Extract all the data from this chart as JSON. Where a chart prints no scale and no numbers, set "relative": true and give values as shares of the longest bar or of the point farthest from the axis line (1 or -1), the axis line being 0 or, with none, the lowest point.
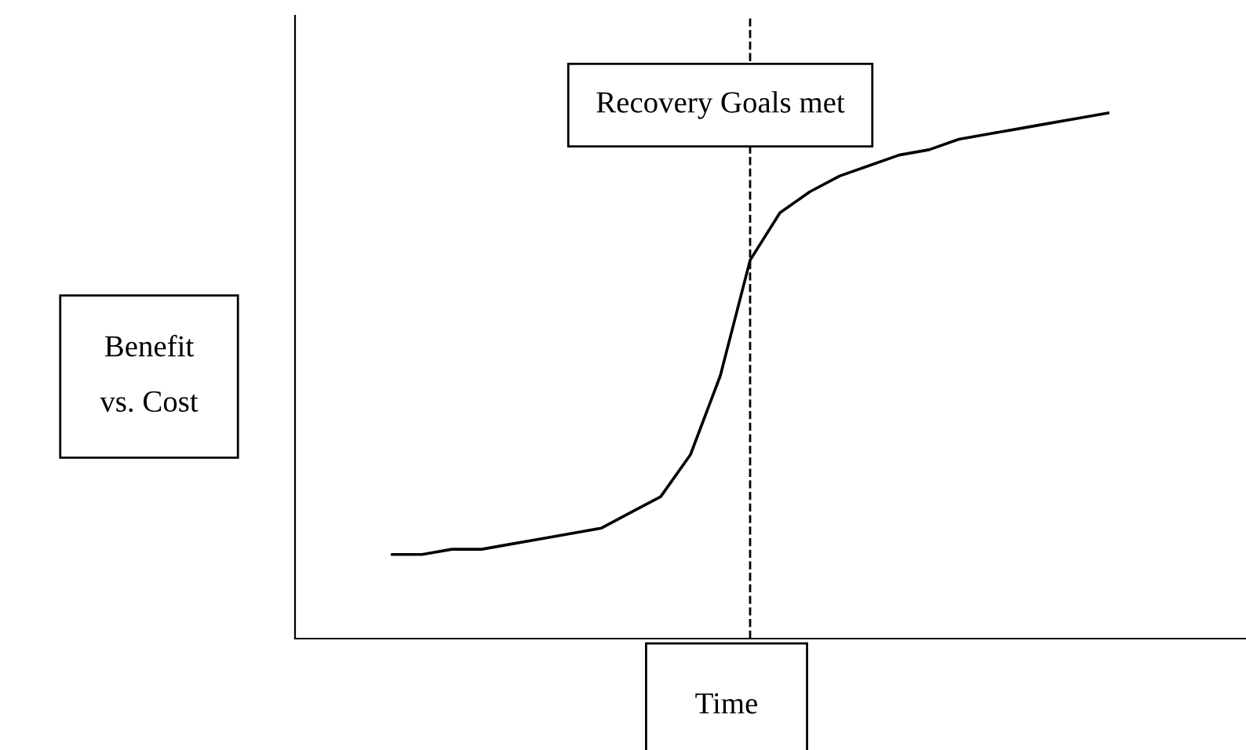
{
  "chart_data": {
    "type": "line",
    "relative": true,
    "xlabel": "Time",
    "annotations": [
      "Recovery Goals met",
      "Benefit\nvs. Cost"
    ],
    "categories": [
      null,
      null,
      null,
      null,
      null,
      null,
      null,
      null,
      null,
      null,
      null,
      null,
      null,
      null,
      null,
      null,
      null,
      null,
      null,
      null,
      null,
      null,
      null,
      null,
      null
    ],
    "series": [
      {
        "color": "#000000",
        "values": [
          0.16,
          0.16,
          0.17,
          0.17,
          0.18,
          0.19,
          0.2,
          0.21,
          0.24,
          0.27,
          0.35,
          0.5,
          0.72,
          0.81,
          0.85,
          0.88,
          0.9,
          0.92,
          0.93,
          0.95,
          0.96,
          0.97,
          0.98,
          0.99,
          1
        ]
      }
    ],
    "marker": "none",
    "line_style": "solid"
  }
}
